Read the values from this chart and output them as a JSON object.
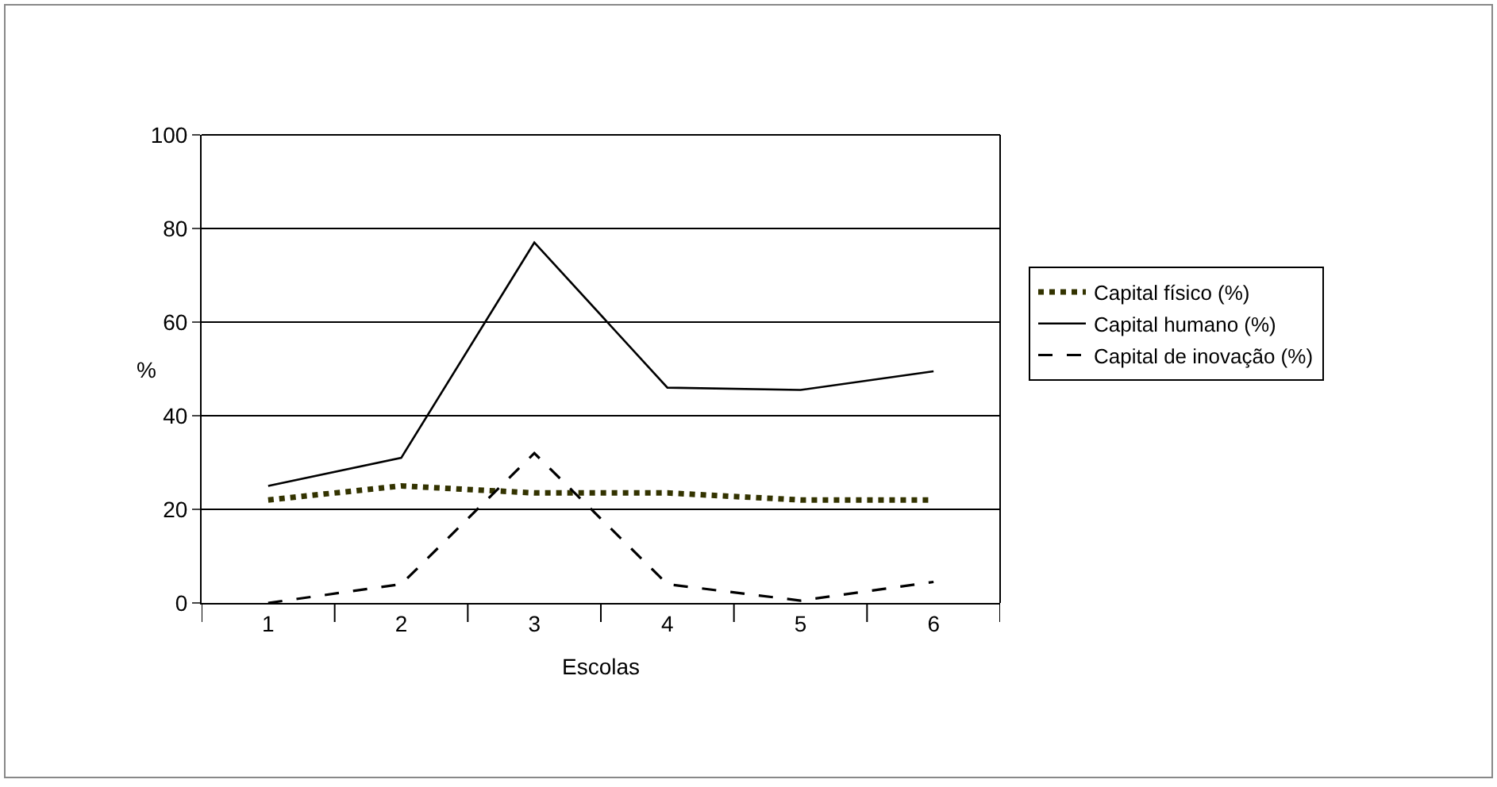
{
  "chart_data": {
    "type": "line",
    "xlabel": "Escolas",
    "ylabel": "%",
    "categories": [
      "1",
      "2",
      "3",
      "4",
      "5",
      "6"
    ],
    "series": [
      {
        "name": "Capital físico (%)",
        "color": "#333300",
        "line_style": "dotted",
        "values": [
          22,
          25,
          23.5,
          23.5,
          22,
          22
        ]
      },
      {
        "name": "Capital humano (%)",
        "color": "#000000",
        "line_style": "solid",
        "values": [
          25,
          31,
          77,
          46,
          45.5,
          49.5
        ]
      },
      {
        "name": "Capital de inovação (%)",
        "color": "#000000",
        "line_style": "dashed",
        "values": [
          0,
          4,
          32,
          4,
          0.5,
          4.5
        ]
      }
    ],
    "ylim": [
      0,
      100
    ],
    "yticks": [
      0,
      20,
      40,
      60,
      80,
      100
    ],
    "grid": "y",
    "legend": "right",
    "marker": "none"
  }
}
